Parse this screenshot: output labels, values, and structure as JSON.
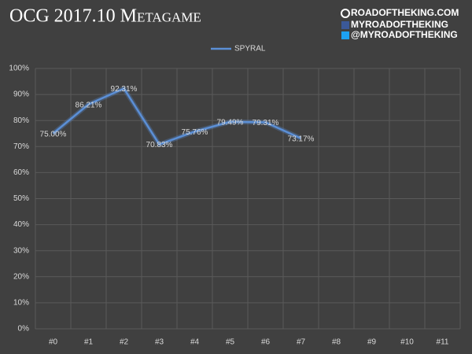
{
  "chart_data": {
    "type": "line",
    "title": "OCG 2017.10 Metagame",
    "watermark_lines": [
      "ROADOFTHEKING.COM",
      "MYROADOFTHEKING",
      "@MYROADOFTHEKING"
    ],
    "categories": [
      "#0",
      "#1",
      "#2",
      "#3",
      "#4",
      "#5",
      "#6",
      "#7",
      "#8",
      "#9",
      "#10",
      "#11"
    ],
    "series": [
      {
        "name": "SPYRAL",
        "color": "#5b8fd6",
        "values": [
          75.0,
          86.21,
          92.31,
          70.83,
          75.76,
          79.49,
          79.31,
          73.17,
          null,
          null,
          null,
          null
        ],
        "value_labels": [
          "75.00%",
          "86.21%",
          "92.31%",
          "70.83%",
          "75.76%",
          "79.49%",
          "79.31%",
          "73.17%",
          null,
          null,
          null,
          null
        ]
      }
    ],
    "ylim": [
      0,
      100
    ],
    "yticks": [
      {
        "value": 0,
        "label": "0%"
      },
      {
        "value": 10,
        "label": "10%"
      },
      {
        "value": 20,
        "label": "20%"
      },
      {
        "value": 30,
        "label": "30%"
      },
      {
        "value": 40,
        "label": "40%"
      },
      {
        "value": 50,
        "label": "50%"
      },
      {
        "value": 60,
        "label": "60%"
      },
      {
        "value": 70,
        "label": "70%"
      },
      {
        "value": 80,
        "label": "80%"
      },
      {
        "value": 90,
        "label": "90%"
      },
      {
        "value": 100,
        "label": "100%"
      }
    ],
    "grid": true,
    "legend": "top"
  }
}
